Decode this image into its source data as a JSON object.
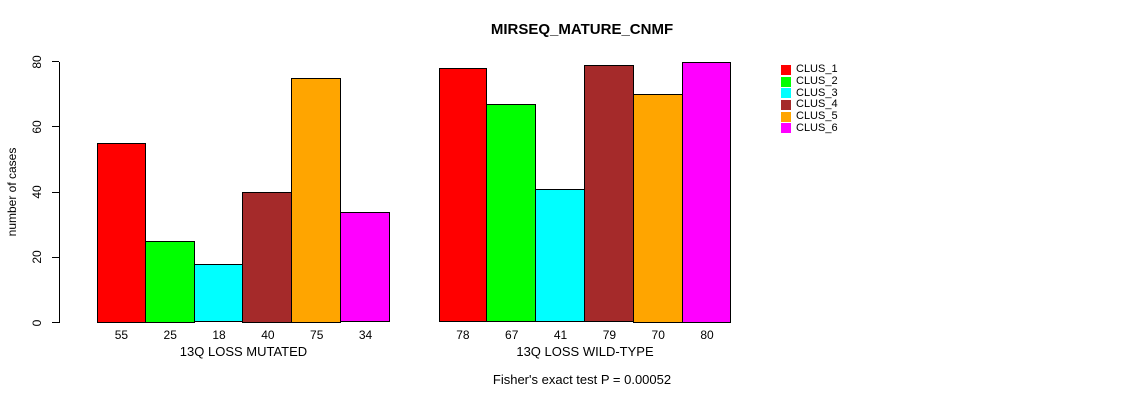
{
  "chart_data": {
    "type": "bar",
    "title": "MIRSEQ_MATURE_CNMF",
    "ylabel": "number of cases",
    "xlabel": "",
    "ylim": [
      0,
      80
    ],
    "yticks": [
      0,
      20,
      40,
      60,
      80
    ],
    "grid": false,
    "bar_value_labels": true,
    "legend_position": "right",
    "categories": [
      "CLUS_1",
      "CLUS_2",
      "CLUS_3",
      "CLUS_4",
      "CLUS_5",
      "CLUS_6"
    ],
    "series_colors": [
      "#ff0000",
      "#00ff00",
      "#00ffff",
      "#a52a2a",
      "#ffa500",
      "#ff00ff"
    ],
    "groups": [
      {
        "label": "13Q LOSS MUTATED",
        "values": [
          55,
          25,
          18,
          40,
          75,
          34
        ]
      },
      {
        "label": "13Q LOSS WILD-TYPE",
        "values": [
          78,
          67,
          41,
          79,
          70,
          80
        ]
      }
    ],
    "legend": [
      {
        "label": "CLUS_1",
        "color": "#ff0000"
      },
      {
        "label": "CLUS_2",
        "color": "#00ff00"
      },
      {
        "label": "CLUS_3",
        "color": "#00ffff"
      },
      {
        "label": "CLUS_4",
        "color": "#a52a2a"
      },
      {
        "label": "CLUS_5",
        "color": "#ffa500"
      },
      {
        "label": "CLUS_6",
        "color": "#ff00ff"
      }
    ],
    "footnote": "Fisher's exact test P = 0.00052"
  }
}
